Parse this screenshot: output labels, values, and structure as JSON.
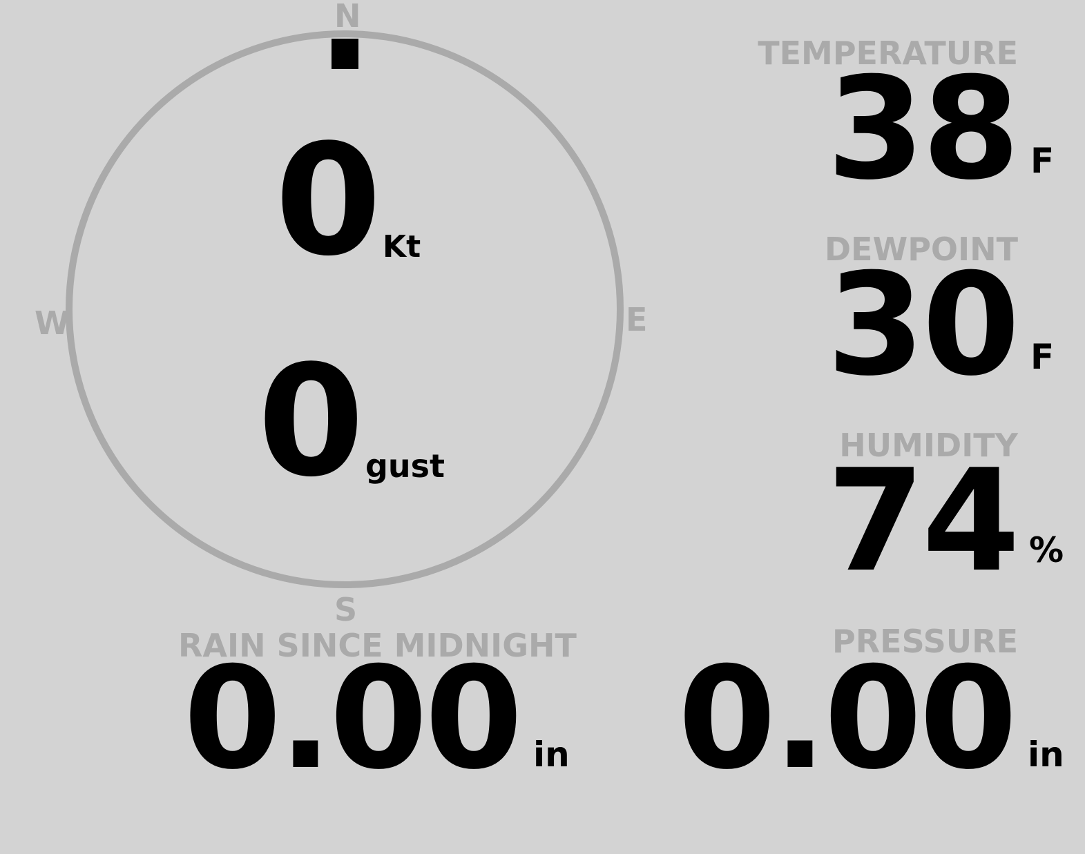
{
  "colors": {
    "background": "#d3d3d3",
    "label": "#aaaaaa",
    "value": "#000000",
    "dial": "#aaaaaa",
    "direction_marker": "#000000"
  },
  "wind": {
    "cardinals": {
      "n": "N",
      "e": "E",
      "s": "S",
      "w": "W"
    },
    "direction_deg": 0,
    "speed": "0",
    "speed_unit": "Kt",
    "gust": "0",
    "gust_unit": "gust"
  },
  "temperature": {
    "label": "TEMPERATURE",
    "value": "38",
    "unit": "F"
  },
  "dewpoint": {
    "label": "DEWPOINT",
    "value": "30",
    "unit": "F"
  },
  "humidity": {
    "label": "HUMIDITY",
    "value": "74",
    "unit": "%"
  },
  "rain": {
    "label": "RAIN SINCE MIDNIGHT",
    "value": "0.00",
    "unit": "in"
  },
  "pressure": {
    "label": "PRESSURE",
    "value": "0.00",
    "unit": "in"
  }
}
